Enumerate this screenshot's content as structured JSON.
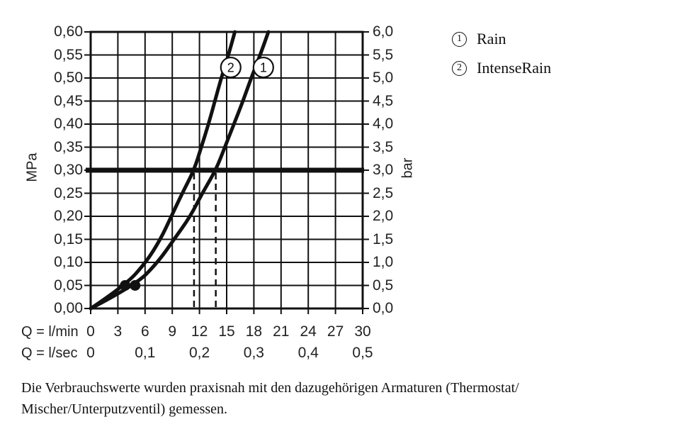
{
  "chart_data": {
    "type": "line",
    "title": "",
    "x_axis": {
      "row1_label": "Q = l/min",
      "ticks_lmin": [
        0,
        3,
        6,
        9,
        12,
        15,
        18,
        21,
        24,
        27,
        30
      ],
      "row2_label": "Q = l/sec",
      "ticks_lsec": [
        {
          "label": "0",
          "q_lmin": 0
        },
        {
          "label": "0,1",
          "q_lmin": 6
        },
        {
          "label": "0,2",
          "q_lmin": 12
        },
        {
          "label": "0,3",
          "q_lmin": 18
        },
        {
          "label": "0,4",
          "q_lmin": 24
        },
        {
          "label": "0,5",
          "q_lmin": 30
        }
      ],
      "range_lmin": [
        0,
        30
      ]
    },
    "y_axis_left": {
      "unit": "MPa",
      "ticks": [
        "0,60",
        "0,55",
        "0,50",
        "0,45",
        "0,40",
        "0,35",
        "0,30",
        "0,25",
        "0,20",
        "0,15",
        "0,10",
        "0,05",
        "0,00"
      ],
      "range_mpa": [
        0,
        0.6
      ]
    },
    "y_axis_right": {
      "unit": "bar",
      "ticks": [
        "6,0",
        "5,5",
        "5,0",
        "4,5",
        "4,0",
        "3,5",
        "3,0",
        "2,5",
        "2,0",
        "1,5",
        "1,0",
        "0,5",
        "0,0"
      ],
      "range_bar": [
        0,
        6
      ]
    },
    "grid": true,
    "series": [
      {
        "name": "Rain",
        "marker_number": "1",
        "points_q_p": [
          [
            0,
            0
          ],
          [
            4.9,
            0.05
          ],
          [
            7.4,
            0.1
          ],
          [
            9.2,
            0.15
          ],
          [
            11.0,
            0.2
          ],
          [
            12.3,
            0.25
          ],
          [
            13.8,
            0.3
          ],
          [
            14.8,
            0.35
          ],
          [
            15.8,
            0.4
          ],
          [
            16.8,
            0.45
          ],
          [
            17.7,
            0.5
          ],
          [
            18.7,
            0.55
          ],
          [
            19.6,
            0.6
          ]
        ]
      },
      {
        "name": "IntenseRain",
        "marker_number": "2",
        "points_q_p": [
          [
            0,
            0
          ],
          [
            3.8,
            0.05
          ],
          [
            6.1,
            0.1
          ],
          [
            7.7,
            0.15
          ],
          [
            8.9,
            0.2
          ],
          [
            10.1,
            0.25
          ],
          [
            11.4,
            0.3
          ],
          [
            12.2,
            0.35
          ],
          [
            13.0,
            0.4
          ],
          [
            13.7,
            0.45
          ],
          [
            14.4,
            0.5
          ],
          [
            15.2,
            0.55
          ],
          [
            15.9,
            0.6
          ]
        ]
      }
    ],
    "curve_label_markers": [
      {
        "number": "1",
        "q_lmin": 19.05,
        "p_mpa": 0.523
      },
      {
        "number": "2",
        "q_lmin": 15.45,
        "p_mpa": 0.523
      }
    ],
    "reference_line": {
      "value_mpa": 0.3,
      "value_bar": 3.0
    },
    "dashed_guides_lmin": [
      11.4,
      13.8
    ],
    "measured_points": [
      {
        "series": "IntenseRain",
        "q_lmin": 3.8,
        "p_mpa": 0.05
      },
      {
        "series": "Rain",
        "q_lmin": 4.9,
        "p_mpa": 0.05
      }
    ],
    "line_color": "#111111",
    "background": "#ffffff"
  },
  "legend": {
    "items": [
      {
        "number": "1",
        "label": "Rain"
      },
      {
        "number": "2",
        "label": "IntenseRain"
      }
    ]
  },
  "footer": {
    "line1": "Die Verbrauchswerte wurden praxisnah mit den dazugehörigen Armaturen (Thermostat/",
    "line2": "Mischer/Unterputzventil) gemessen."
  }
}
